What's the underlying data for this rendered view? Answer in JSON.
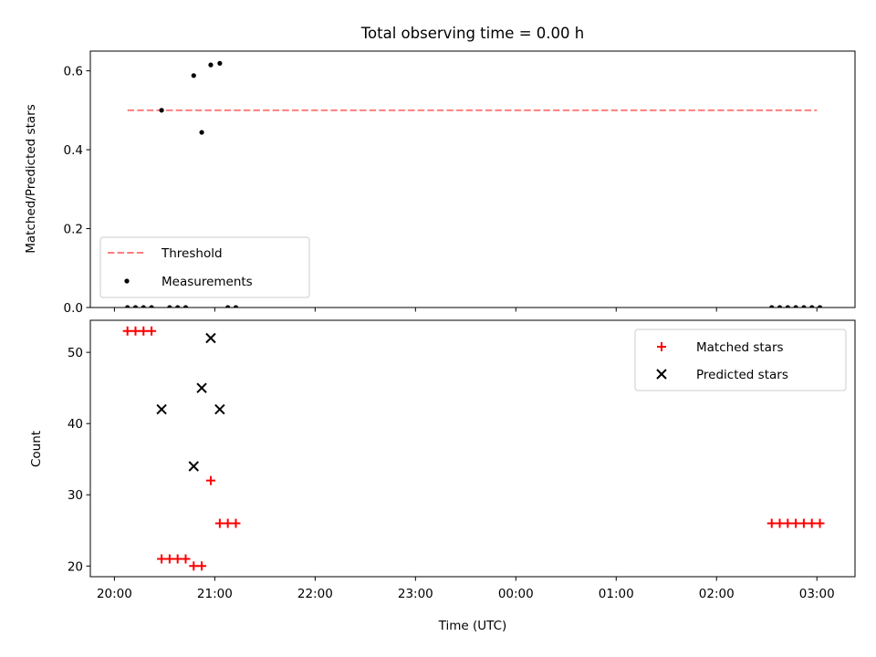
{
  "chart_data": [
    {
      "type": "scatter",
      "title": "Total observing time = 0.00 h",
      "xlabel": "",
      "ylabel": "Matched/Predicted stars",
      "ylim": [
        0,
        0.65
      ],
      "yticks": [
        0.0,
        0.2,
        0.4,
        0.6
      ],
      "ytick_labels": [
        "0.0",
        "0.2",
        "0.4",
        "0.6"
      ],
      "xlim": [
        -0.24,
        7.38
      ],
      "legend_position": "bottom-left",
      "threshold": {
        "name": "Threshold",
        "value": 0.5,
        "x_range": [
          0.13,
          7.0
        ],
        "color": "#ff7f7f"
      },
      "series": [
        {
          "name": "Measurements",
          "color": "#000000",
          "points": [
            [
              0.13,
              0
            ],
            [
              0.21,
              0
            ],
            [
              0.29,
              0
            ],
            [
              0.37,
              0
            ],
            [
              0.47,
              0.5
            ],
            [
              0.55,
              0
            ],
            [
              0.63,
              0
            ],
            [
              0.71,
              0
            ],
            [
              0.79,
              0.588
            ],
            [
              0.87,
              0.444
            ],
            [
              0.96,
              0.615
            ],
            [
              1.05,
              0.619
            ],
            [
              1.13,
              0
            ],
            [
              1.21,
              0
            ],
            [
              6.55,
              0
            ],
            [
              6.63,
              0
            ],
            [
              6.71,
              0
            ],
            [
              6.79,
              0
            ],
            [
              6.87,
              0
            ],
            [
              6.95,
              0
            ],
            [
              7.03,
              0
            ]
          ]
        }
      ]
    },
    {
      "type": "scatter",
      "xlabel": "Time (UTC)",
      "ylabel": "Count",
      "ylim": [
        18.5,
        54.5
      ],
      "yticks": [
        20,
        30,
        40,
        50
      ],
      "ytick_labels": [
        "20",
        "30",
        "40",
        "50"
      ],
      "xlim": [
        -0.24,
        7.38
      ],
      "xticks": [
        0,
        1,
        2,
        3,
        4,
        5,
        6,
        7
      ],
      "xtick_labels": [
        "20:00",
        "21:00",
        "22:00",
        "23:00",
        "00:00",
        "01:00",
        "02:00",
        "03:00"
      ],
      "legend_position": "top-right",
      "series": [
        {
          "name": "Matched stars",
          "color": "#ff0000",
          "marker": "plus",
          "points": [
            [
              0.13,
              53
            ],
            [
              0.21,
              53
            ],
            [
              0.29,
              53
            ],
            [
              0.37,
              53
            ],
            [
              0.47,
              21
            ],
            [
              0.55,
              21
            ],
            [
              0.63,
              21
            ],
            [
              0.71,
              21
            ],
            [
              0.79,
              20
            ],
            [
              0.87,
              20
            ],
            [
              0.96,
              32
            ],
            [
              1.05,
              26
            ],
            [
              1.13,
              26
            ],
            [
              1.21,
              26
            ],
            [
              6.55,
              26
            ],
            [
              6.63,
              26
            ],
            [
              6.71,
              26
            ],
            [
              6.79,
              26
            ],
            [
              6.87,
              26
            ],
            [
              6.95,
              26
            ],
            [
              7.03,
              26
            ]
          ]
        },
        {
          "name": "Predicted stars",
          "color": "#000000",
          "marker": "x",
          "points": [
            [
              0.47,
              42
            ],
            [
              0.79,
              34
            ],
            [
              0.87,
              45
            ],
            [
              0.96,
              52
            ],
            [
              1.05,
              42
            ]
          ]
        }
      ]
    }
  ]
}
